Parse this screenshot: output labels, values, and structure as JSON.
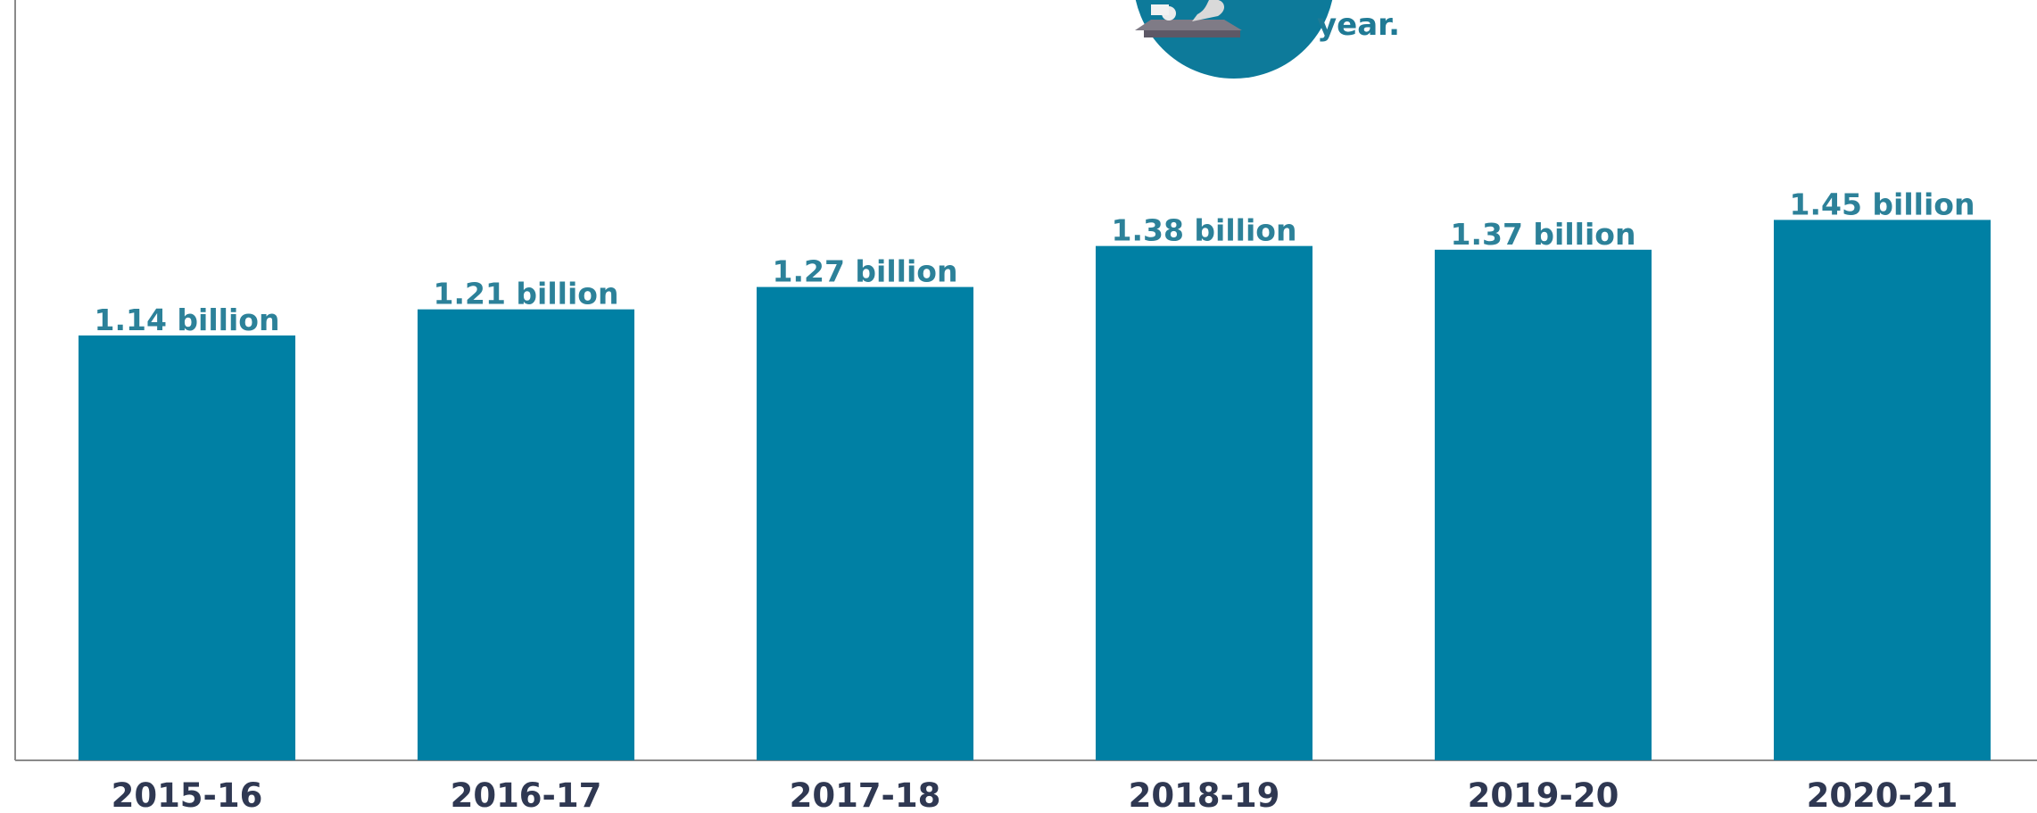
{
  "header": {
    "text": "year."
  },
  "colors": {
    "bar": "#0080a4",
    "value_label": "#2c8199",
    "category_label": "#2f3852",
    "axis": "#8a8a8a",
    "badge": "#0d7a9a",
    "header_text": "#1f7a95"
  },
  "icons": {
    "badge": "award-icon"
  },
  "chart_data": {
    "type": "bar",
    "categories": [
      "2015-16",
      "2016-17",
      "2017-18",
      "2018-19",
      "2019-20",
      "2020-21"
    ],
    "values": [
      1.14,
      1.21,
      1.27,
      1.38,
      1.37,
      1.45
    ],
    "value_labels": [
      "1.14 billion",
      "1.21 billion",
      "1.27 billion",
      "1.38 billion",
      "1.37 billion",
      "1.45 billion"
    ],
    "unit": "billion",
    "ylim": [
      0,
      2.04
    ],
    "grid": false,
    "legend": "none",
    "title": "",
    "xlabel": "",
    "ylabel": ""
  }
}
